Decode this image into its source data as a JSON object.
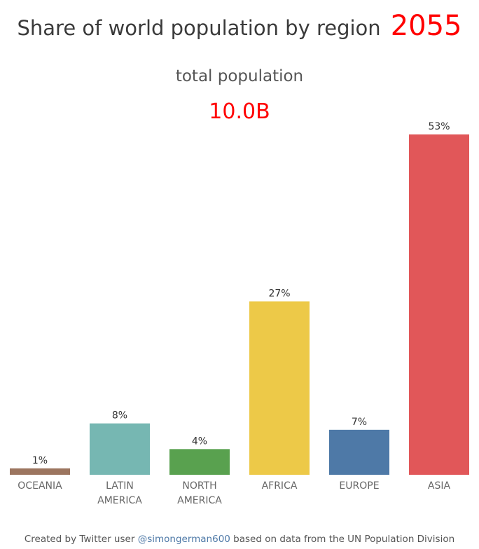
{
  "header": {
    "title": "Share of world population by region",
    "year": "2055",
    "subtitle": "total population",
    "total": "10.0B"
  },
  "footer": {
    "prefix": "Created by Twitter user",
    "handle": "@simongerman600",
    "suffix": "based on data from the UN Population Division"
  },
  "chart_data": {
    "type": "bar",
    "categories": [
      [
        "OCEANIA"
      ],
      [
        "LATIN",
        "AMERICA"
      ],
      [
        "NORTH",
        "AMERICA"
      ],
      [
        "AFRICA"
      ],
      [
        "EUROPE"
      ],
      [
        "ASIA"
      ]
    ],
    "values": [
      1,
      8,
      4,
      27,
      7,
      53
    ],
    "value_labels": [
      "1%",
      "8%",
      "4%",
      "27%",
      "7%",
      "53%"
    ],
    "colors": [
      "#9c755f",
      "#76b7b2",
      "#59a14f",
      "#edc948",
      "#4e79a7",
      "#e15759"
    ],
    "ylim": [
      0,
      53
    ],
    "grid": false,
    "legend": "none"
  }
}
